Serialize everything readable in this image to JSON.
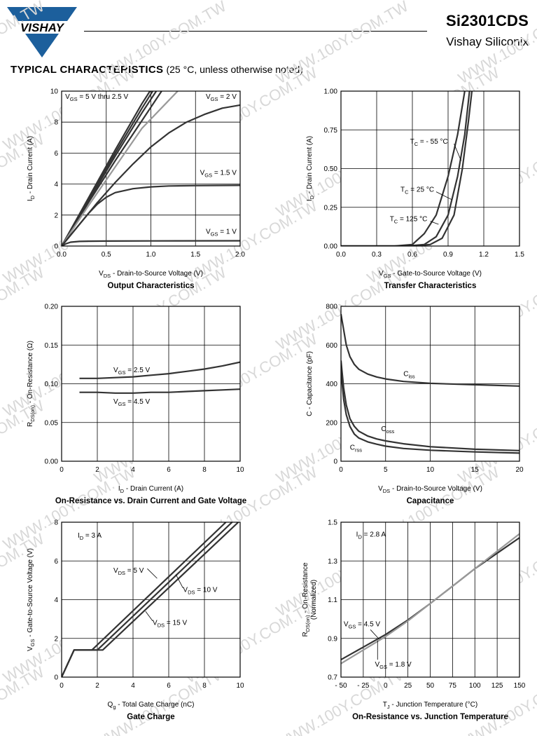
{
  "header": {
    "brand": "VISHAY",
    "part_number": "Si2301CDS",
    "company": "Vishay Siliconix",
    "section_title": "TYPICAL CHARACTERISTICS",
    "section_note": "(25 °C, unless otherwise noted)",
    "watermark": "WWW.100Y.COM.TW"
  },
  "colors": {
    "curve": "#333333",
    "curve_gray": "#999999",
    "grid": "#000000",
    "logo_blue": "#1c5f9c"
  },
  "chart_data": [
    {
      "id": "output",
      "type": "line",
      "title": "Output Characteristics",
      "xlabel_main": "V",
      "xlabel_sub": "DS",
      "xlabel_rest": " - Drain-to-Source Voltage (V)",
      "ylabel_main": "I",
      "ylabel_sub": "D",
      "ylabel_rest": " - Drain Current (A)",
      "xlim": [
        0,
        2.0
      ],
      "ylim": [
        0,
        10
      ],
      "xticks": [
        0,
        0.5,
        1.0,
        1.5,
        2.0
      ],
      "xtick_labels": [
        "0.0",
        "0.5",
        "1.0",
        "1.5",
        "2.0"
      ],
      "yticks": [
        0,
        2,
        4,
        6,
        8,
        10
      ],
      "ytick_labels": [
        "0",
        "2",
        "4",
        "6",
        "8",
        "10"
      ],
      "series": [
        {
          "name": "VGS = 5 V",
          "color": "curve",
          "x": [
            0,
            0.3,
            0.6,
            0.9,
            0.99
          ],
          "y": [
            0,
            3.1,
            6.2,
            9.2,
            10
          ]
        },
        {
          "name": "VGS = 4.5 V",
          "color": "curve",
          "x": [
            0,
            0.3,
            0.6,
            0.9,
            1.02
          ],
          "y": [
            0,
            3.0,
            6.0,
            8.9,
            10
          ]
        },
        {
          "name": "VGS = 4 V",
          "color": "curve",
          "x": [
            0,
            0.3,
            0.6,
            0.9,
            1.06
          ],
          "y": [
            0,
            2.9,
            5.8,
            8.6,
            10
          ]
        },
        {
          "name": "VGS = 3 V",
          "color": "curve",
          "x": [
            0,
            0.3,
            0.6,
            0.9,
            1.12
          ],
          "y": [
            0,
            2.8,
            5.5,
            8.1,
            10
          ]
        },
        {
          "name": "VGS = 2.5 V",
          "color": "curve_gray",
          "x": [
            0,
            0.3,
            0.6,
            0.9,
            1.2,
            1.3
          ],
          "y": [
            0,
            2.6,
            5.1,
            7.6,
            9.4,
            10
          ]
        },
        {
          "name": "VGS = 2 V",
          "color": "curve",
          "x": [
            0,
            0.2,
            0.4,
            0.6,
            0.8,
            1.0,
            1.2,
            1.4,
            1.6,
            1.8,
            2.0
          ],
          "y": [
            0,
            1.4,
            2.8,
            4.1,
            5.3,
            6.4,
            7.3,
            8.0,
            8.5,
            8.9,
            9.1
          ]
        },
        {
          "name": "VGS = 1.5 V",
          "color": "curve",
          "x": [
            0,
            0.1,
            0.2,
            0.3,
            0.4,
            0.5,
            0.6,
            0.8,
            1.0,
            1.2,
            1.5,
            2.0
          ],
          "y": [
            0,
            0.7,
            1.4,
            2.1,
            2.7,
            3.15,
            3.45,
            3.7,
            3.82,
            3.88,
            3.9,
            3.92
          ]
        },
        {
          "name": "VGS = 1 V",
          "color": "curve",
          "x": [
            0,
            0.05,
            0.1,
            0.2,
            0.3,
            0.5,
            1.0,
            2.0
          ],
          "y": [
            0,
            0.15,
            0.25,
            0.3,
            0.31,
            0.32,
            0.33,
            0.34
          ]
        }
      ],
      "annotations": [
        {
          "x": 0.04,
          "y": 9.5,
          "main": "V",
          "sub": "GS",
          "rest": " = 5 V thru 2.5 V",
          "anchor": "start"
        },
        {
          "x": 1.96,
          "y": 9.5,
          "main": "V",
          "sub": "GS",
          "rest": " = 2 V",
          "anchor": "end"
        },
        {
          "x": 1.96,
          "y": 4.6,
          "main": "V",
          "sub": "GS",
          "rest": " = 1.5 V",
          "anchor": "end"
        },
        {
          "x": 1.96,
          "y": 0.8,
          "main": "V",
          "sub": "GS",
          "rest": " = 1 V",
          "anchor": "end"
        }
      ]
    },
    {
      "id": "transfer",
      "type": "line",
      "title": "Transfer Characteristics",
      "xlabel_main": "V",
      "xlabel_sub": "GS",
      "xlabel_rest": " - Gate-to-Source Voltage (V)",
      "ylabel_main": "I",
      "ylabel_sub": "D",
      "ylabel_rest": " - Drain Current (A)",
      "xlim": [
        0,
        1.5
      ],
      "ylim": [
        0,
        1.0
      ],
      "xticks": [
        0,
        0.3,
        0.6,
        0.9,
        1.2,
        1.5
      ],
      "xtick_labels": [
        "0.0",
        "0.3",
        "0.6",
        "0.9",
        "1.2",
        "1.5"
      ],
      "yticks": [
        0,
        0.25,
        0.5,
        0.75,
        1.0
      ],
      "ytick_labels": [
        "0.00",
        "0.25",
        "0.50",
        "0.75",
        "1.00"
      ],
      "series": [
        {
          "name": "TC = -55 °C",
          "color": "curve",
          "x": [
            0,
            0.6,
            0.75,
            0.85,
            0.95,
            1.02,
            1.07,
            1.1
          ],
          "y": [
            0,
            0,
            0.01,
            0.05,
            0.2,
            0.5,
            0.8,
            1.0
          ]
        },
        {
          "name": "TC = 25 °C",
          "color": "curve",
          "x": [
            0,
            0.55,
            0.7,
            0.8,
            0.9,
            0.98,
            1.04,
            1.08
          ],
          "y": [
            0,
            0,
            0.01,
            0.06,
            0.2,
            0.45,
            0.72,
            1.0
          ]
        },
        {
          "name": "TC = 125 °C",
          "color": "curve",
          "x": [
            0,
            0.45,
            0.6,
            0.7,
            0.8,
            0.9,
            0.98,
            1.04
          ],
          "y": [
            0,
            0,
            0.01,
            0.08,
            0.2,
            0.45,
            0.72,
            1.0
          ]
        }
      ],
      "annotations": [
        {
          "x": 0.58,
          "y": 0.66,
          "main": "T",
          "sub": "C",
          "rest": " = - 55 °C",
          "anchor": "start"
        },
        {
          "x": 0.5,
          "y": 0.35,
          "main": "T",
          "sub": "C",
          "rest": " = 25 °C",
          "anchor": "start"
        },
        {
          "x": 0.41,
          "y": 0.16,
          "main": "T",
          "sub": "C",
          "rest": " = 125 °C",
          "anchor": "start"
        }
      ],
      "leaders": [
        {
          "x1": 0.95,
          "y1": 0.66,
          "x2": 1.01,
          "y2": 0.55
        },
        {
          "x1": 0.8,
          "y1": 0.35,
          "x2": 0.93,
          "y2": 0.3
        },
        {
          "x1": 0.75,
          "y1": 0.16,
          "x2": 0.82,
          "y2": 0.14
        }
      ]
    },
    {
      "id": "on_resistance_id",
      "type": "line",
      "title": "On-Resistance vs. Drain Current and Gate Voltage",
      "xlabel_main": "I",
      "xlabel_sub": "D",
      "xlabel_rest": " - Drain Current (A)",
      "ylabel_main": "R",
      "ylabel_sub": "DS(on)",
      "ylabel_rest": " - On-Resistance (Ω)",
      "xlim": [
        0,
        10
      ],
      "ylim": [
        0,
        0.2
      ],
      "xticks": [
        0,
        2,
        4,
        6,
        8,
        10
      ],
      "xtick_labels": [
        "0",
        "2",
        "4",
        "6",
        "8",
        "10"
      ],
      "yticks": [
        0,
        0.05,
        0.1,
        0.15,
        0.2
      ],
      "ytick_labels": [
        "0.00",
        "0.05",
        "0.10",
        "0.15",
        "0.20"
      ],
      "series": [
        {
          "name": "VGS = 2.5 V",
          "color": "curve",
          "x": [
            1,
            2,
            3,
            4,
            5,
            6,
            7,
            8,
            9,
            10
          ],
          "y": [
            0.107,
            0.107,
            0.108,
            0.109,
            0.111,
            0.113,
            0.116,
            0.119,
            0.123,
            0.128
          ]
        },
        {
          "name": "VGS = 4.5 V",
          "color": "curve",
          "x": [
            1,
            2,
            3,
            4,
            5,
            6,
            7,
            8,
            9,
            10
          ],
          "y": [
            0.089,
            0.089,
            0.088,
            0.088,
            0.089,
            0.089,
            0.09,
            0.091,
            0.092,
            0.093
          ]
        }
      ],
      "annotations": [
        {
          "x": 2.9,
          "y": 0.115,
          "main": "V",
          "sub": "GS",
          "rest": " = 2.5 V",
          "anchor": "start"
        },
        {
          "x": 2.9,
          "y": 0.074,
          "main": "V",
          "sub": "GS",
          "rest": " = 4.5 V",
          "anchor": "start"
        }
      ]
    },
    {
      "id": "capacitance",
      "type": "line",
      "title": "Capacitance",
      "xlabel_main": "V",
      "xlabel_sub": "DS",
      "xlabel_rest": " - Drain-to-Source Voltage (V)",
      "ylabel_main": "C",
      "ylabel_sub": "",
      "ylabel_rest": " - Capacitance (pF)",
      "xlim": [
        0,
        20
      ],
      "ylim": [
        0,
        800
      ],
      "xticks": [
        0,
        5,
        10,
        15,
        20
      ],
      "xtick_labels": [
        "0",
        "5",
        "10",
        "15",
        "20"
      ],
      "yticks": [
        0,
        200,
        400,
        600,
        800
      ],
      "ytick_labels": [
        "0",
        "200",
        "400",
        "600",
        "800"
      ],
      "series": [
        {
          "name": "Ciss",
          "color": "curve",
          "x": [
            0,
            0.3,
            0.6,
            1,
            1.5,
            2,
            3,
            4,
            5,
            7,
            10,
            15,
            20
          ],
          "y": [
            760,
            680,
            600,
            540,
            500,
            475,
            450,
            435,
            425,
            412,
            402,
            395,
            388
          ]
        },
        {
          "name": "Coss",
          "color": "curve",
          "x": [
            0,
            0.3,
            0.6,
            1,
            1.5,
            2,
            3,
            4,
            5,
            7,
            10,
            15,
            20
          ],
          "y": [
            520,
            380,
            290,
            220,
            180,
            155,
            130,
            115,
            105,
            90,
            75,
            62,
            55
          ]
        },
        {
          "name": "Crss",
          "color": "curve",
          "x": [
            0,
            0.3,
            0.6,
            1,
            1.5,
            2,
            3,
            4,
            5,
            7,
            10,
            15,
            20
          ],
          "y": [
            470,
            320,
            240,
            180,
            140,
            120,
            100,
            88,
            78,
            66,
            57,
            48,
            42
          ]
        }
      ],
      "annotations": [
        {
          "x": 7.0,
          "y": 440,
          "main": "C",
          "sub": "iss",
          "rest": "",
          "anchor": "start"
        },
        {
          "x": 4.5,
          "y": 155,
          "main": "C",
          "sub": "oss",
          "rest": "",
          "anchor": "start"
        },
        {
          "x": 1.0,
          "y": 60,
          "main": "C",
          "sub": "rss",
          "rest": "",
          "anchor": "start"
        }
      ]
    },
    {
      "id": "gate_charge",
      "type": "line",
      "title": "Gate Charge",
      "xlabel_main": "Q",
      "xlabel_sub": "g",
      "xlabel_rest": " - Total Gate Charge (nC)",
      "ylabel_main": "V",
      "ylabel_sub": "GS",
      "ylabel_rest": " - Gate-to-Source Voltage (V)",
      "xlim": [
        0,
        10
      ],
      "ylim": [
        0,
        8
      ],
      "xticks": [
        0,
        2,
        4,
        6,
        8,
        10
      ],
      "xtick_labels": [
        "0",
        "2",
        "4",
        "6",
        "8",
        "10"
      ],
      "yticks": [
        0,
        2,
        4,
        6,
        8
      ],
      "ytick_labels": [
        "0",
        "2",
        "4",
        "6",
        "8"
      ],
      "series": [
        {
          "name": "VDS = 5 V",
          "color": "curve",
          "x": [
            0,
            0.7,
            1.7,
            9.2
          ],
          "y": [
            0,
            1.4,
            1.4,
            8
          ]
        },
        {
          "name": "VDS = 10 V",
          "color": "curve",
          "x": [
            0,
            0.7,
            2.0,
            9.55
          ],
          "y": [
            0,
            1.4,
            1.4,
            8
          ]
        },
        {
          "name": "VDS = 15 V",
          "color": "curve",
          "x": [
            0,
            0.7,
            2.3,
            9.9
          ],
          "y": [
            0,
            1.4,
            1.4,
            8
          ]
        }
      ],
      "annotations": [
        {
          "x": 0.9,
          "y": 7.2,
          "main": "I",
          "sub": "D",
          "rest": " = 3 A",
          "anchor": "start"
        },
        {
          "x": 2.9,
          "y": 5.4,
          "main": "V",
          "sub": "DS",
          "rest": " = 5 V",
          "anchor": "start"
        },
        {
          "x": 6.8,
          "y": 4.4,
          "main": "V",
          "sub": "DS",
          "rest": " = 10 V",
          "anchor": "start"
        },
        {
          "x": 5.1,
          "y": 2.7,
          "main": "V",
          "sub": "DS",
          "rest": " = 15 V",
          "anchor": "start"
        }
      ],
      "leaders": [
        {
          "x1": 4.8,
          "y1": 5.6,
          "x2": 5.35,
          "y2": 5.1
        },
        {
          "x1": 6.8,
          "y1": 4.6,
          "x2": 6.4,
          "y2": 5.3
        },
        {
          "x1": 5.1,
          "y1": 2.9,
          "x2": 4.7,
          "y2": 3.4
        }
      ]
    },
    {
      "id": "on_resistance_tj",
      "type": "line",
      "title": "On-Resistance vs. Junction Temperature",
      "xlabel_main": "T",
      "xlabel_sub": "J",
      "xlabel_rest": " - Junction Temperature (°C)",
      "ylabel_main": "R",
      "ylabel_sub": "DS(on)",
      "ylabel_rest": " - On-Resistance",
      "ylabel_line2": "(Normalized)",
      "xlim": [
        -50,
        150
      ],
      "ylim": [
        0.7,
        1.5
      ],
      "xticks": [
        -50,
        -25,
        0,
        25,
        50,
        75,
        100,
        125,
        150
      ],
      "xtick_labels": [
        "- 50",
        "- 25",
        "0",
        "25",
        "50",
        "75",
        "100",
        "125",
        "150"
      ],
      "yticks": [
        0.7,
        0.9,
        1.1,
        1.3,
        1.5
      ],
      "ytick_labels": [
        "0.7",
        "0.9",
        "1.1",
        "1.3",
        "1.5"
      ],
      "series": [
        {
          "name": "VGS = 4.5 V",
          "color": "curve",
          "x": [
            -50,
            -25,
            0,
            25,
            50,
            75,
            100,
            125,
            150
          ],
          "y": [
            0.79,
            0.855,
            0.92,
            0.995,
            1.08,
            1.17,
            1.26,
            1.34,
            1.42
          ]
        },
        {
          "name": "VGS = 1.8 V",
          "color": "curve_gray",
          "x": [
            -50,
            -25,
            0,
            25,
            50,
            75,
            100,
            125,
            150
          ],
          "y": [
            0.77,
            0.84,
            0.91,
            0.99,
            1.08,
            1.17,
            1.26,
            1.35,
            1.44
          ]
        }
      ],
      "annotations": [
        {
          "x": -33,
          "y": 1.425,
          "main": "I",
          "sub": "D",
          "rest": " = 2.8 A",
          "anchor": "start"
        },
        {
          "x": -47,
          "y": 0.963,
          "main": "V",
          "sub": "GS",
          "rest": " = 4.5 V",
          "anchor": "start"
        },
        {
          "x": -12,
          "y": 0.755,
          "main": "V",
          "sub": "GS",
          "rest": " = 1.8 V",
          "anchor": "start"
        }
      ],
      "leaders": [
        {
          "x1": -17,
          "y1": 0.945,
          "x2": -7,
          "y2": 0.895
        },
        {
          "x1": -9,
          "y1": 0.79,
          "x2": -9,
          "y2": 0.89
        }
      ]
    }
  ]
}
